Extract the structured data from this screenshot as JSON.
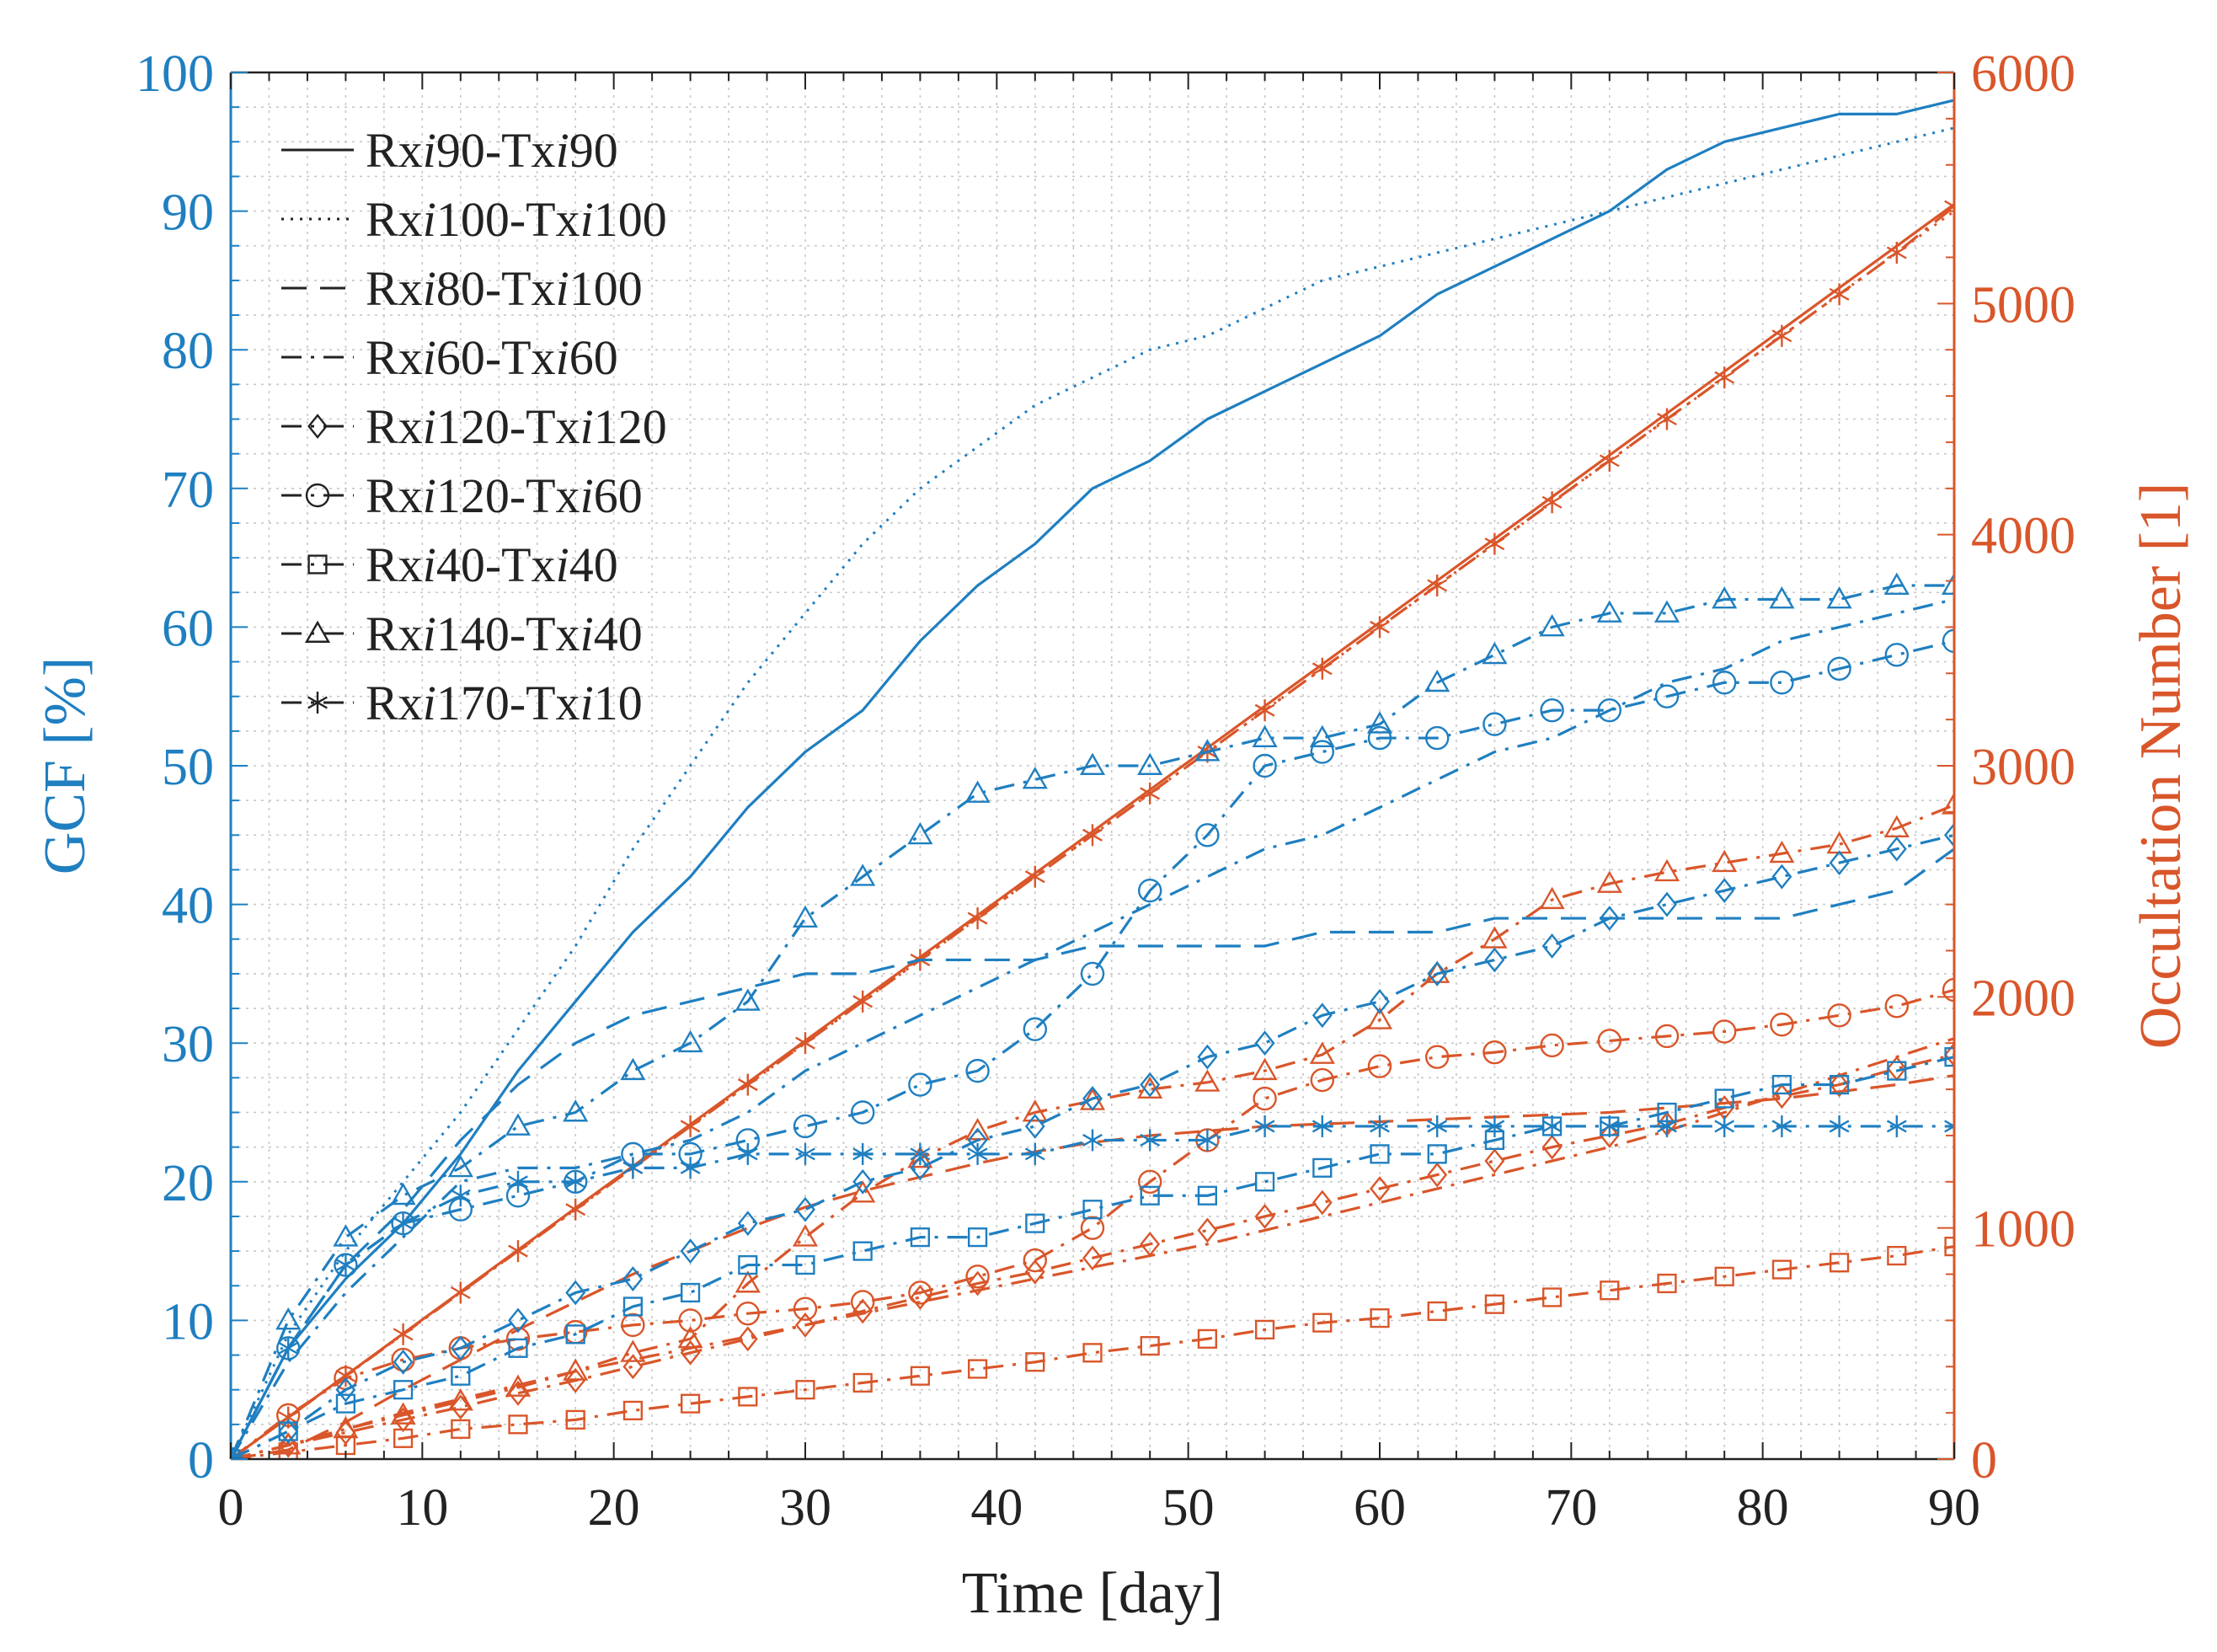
{
  "chart_data": {
    "type": "line",
    "xlabel": "Time [day]",
    "ylabel_left": "GCF [%]",
    "ylabel_right": "Occultation Number [1]",
    "xlim": [
      0,
      90
    ],
    "ylim_left": [
      0,
      100
    ],
    "ylim_right": [
      0,
      6000
    ],
    "x_ticks": [
      0,
      10,
      20,
      30,
      40,
      50,
      60,
      70,
      80,
      90
    ],
    "y_ticks_left": [
      0,
      10,
      20,
      30,
      40,
      50,
      60,
      70,
      80,
      90,
      100
    ],
    "y_ticks_right": [
      0,
      1000,
      2000,
      3000,
      4000,
      5000,
      6000
    ],
    "grid": "minor dotted",
    "legend_position": "top-left",
    "colors": {
      "gcf": "#1f7fc0",
      "occultation": "#d9562a",
      "legend": "#222222"
    },
    "x": [
      0,
      3,
      6,
      9,
      12,
      15,
      18,
      21,
      24,
      27,
      30,
      33,
      36,
      39,
      42,
      45,
      48,
      51,
      54,
      57,
      60,
      63,
      66,
      69,
      72,
      75,
      78,
      81,
      84,
      87,
      90
    ],
    "legend": [
      {
        "label": "Rxi90-Txi90",
        "dash": "solid",
        "marker": "none"
      },
      {
        "label": "Rxi100-Txi100",
        "dash": "dotted",
        "marker": "none"
      },
      {
        "label": "Rxi80-Txi100",
        "dash": "dashed",
        "marker": "none"
      },
      {
        "label": "Rxi60-Txi60",
        "dash": "dashdot",
        "marker": "none"
      },
      {
        "label": "Rxi120-Txi120",
        "dash": "dashdot",
        "marker": "diamond"
      },
      {
        "label": "Rxi120-Txi60",
        "dash": "dashdot",
        "marker": "circle"
      },
      {
        "label": "Rxi40-Txi40",
        "dash": "dashdot",
        "marker": "square"
      },
      {
        "label": "Rxi140-Txi40",
        "dash": "dashdot",
        "marker": "triangle"
      },
      {
        "label": "Rxi170-Txi10",
        "dash": "dashdot",
        "marker": "star"
      }
    ],
    "series_gcf": [
      {
        "name": "Rxi90-Txi90",
        "values": [
          0,
          8,
          13,
          17,
          22,
          28,
          33,
          38,
          42,
          47,
          51,
          54,
          59,
          63,
          66,
          70,
          72,
          75,
          77,
          79,
          81,
          84,
          86,
          88,
          90,
          93,
          95,
          96,
          97,
          97,
          98
        ]
      },
      {
        "name": "Rxi100-Txi100",
        "values": [
          0,
          9,
          15,
          20,
          25,
          31,
          37,
          44,
          50,
          56,
          61,
          66,
          70,
          73,
          76,
          78,
          80,
          81,
          83,
          85,
          86,
          87,
          88,
          89,
          90,
          91,
          92,
          93,
          94,
          95,
          96
        ]
      },
      {
        "name": "Rxi80-Txi100",
        "values": [
          0,
          8,
          14,
          18,
          23,
          27,
          30,
          32,
          33,
          34,
          35,
          35,
          36,
          36,
          36,
          37,
          37,
          37,
          37,
          38,
          38,
          38,
          39,
          39,
          39,
          39,
          39,
          39,
          40,
          41,
          44
        ]
      },
      {
        "name": "Rxi60-Txi60",
        "values": [
          0,
          7,
          12,
          16,
          20,
          21,
          21,
          22,
          23,
          25,
          28,
          30,
          32,
          34,
          36,
          38,
          40,
          42,
          44,
          45,
          47,
          49,
          51,
          52,
          54,
          56,
          57,
          59,
          60,
          61,
          62
        ]
      },
      {
        "name": "Rxi120-Txi120",
        "values": [
          0,
          2,
          5,
          7,
          8,
          10,
          12,
          13,
          15,
          17,
          18,
          20,
          21,
          23,
          24,
          26,
          27,
          29,
          30,
          32,
          33,
          35,
          36,
          37,
          39,
          40,
          41,
          42,
          43,
          44,
          45
        ]
      },
      {
        "name": "Rxi120-Txi60",
        "values": [
          0,
          8,
          14,
          17,
          18,
          19,
          20,
          22,
          22,
          23,
          24,
          25,
          27,
          28,
          31,
          35,
          41,
          45,
          50,
          51,
          52,
          52,
          53,
          54,
          54,
          55,
          56,
          56,
          57,
          58,
          59
        ]
      },
      {
        "name": "Rxi40-Txi40",
        "values": [
          0,
          2,
          4,
          5,
          6,
          8,
          9,
          11,
          12,
          14,
          14,
          15,
          16,
          16,
          17,
          18,
          19,
          19,
          20,
          21,
          22,
          22,
          23,
          24,
          24,
          25,
          26,
          27,
          27,
          28,
          29
        ]
      },
      {
        "name": "Rxi140-Txi40",
        "values": [
          0,
          10,
          16,
          19,
          21,
          24,
          25,
          28,
          30,
          33,
          39,
          42,
          45,
          48,
          49,
          50,
          50,
          51,
          52,
          52,
          53,
          56,
          58,
          60,
          61,
          61,
          62,
          62,
          62,
          63,
          63
        ]
      },
      {
        "name": "Rxi170-Txi10",
        "values": [
          0,
          8,
          14,
          17,
          19,
          20,
          20,
          21,
          21,
          22,
          22,
          22,
          22,
          22,
          22,
          23,
          23,
          23,
          24,
          24,
          24,
          24,
          24,
          24,
          24,
          24,
          24,
          24,
          24,
          24,
          24
        ]
      }
    ],
    "series_occultation": [
      {
        "name": "Rxi90-Txi90",
        "values": [
          0,
          181,
          362,
          543,
          724,
          905,
          1086,
          1267,
          1448,
          1629,
          1810,
          1991,
          2172,
          2353,
          2534,
          2715,
          2896,
          3077,
          3258,
          3439,
          3620,
          3801,
          3982,
          4163,
          4344,
          4525,
          4706,
          4887,
          5068,
          5249,
          5430
        ]
      },
      {
        "name": "Rxi100-Txi100",
        "values": [
          0,
          180,
          360,
          540,
          720,
          900,
          1080,
          1260,
          1440,
          1620,
          1800,
          1980,
          2160,
          2340,
          2520,
          2700,
          2880,
          3060,
          3240,
          3420,
          3600,
          3780,
          3960,
          4140,
          4320,
          4500,
          4680,
          4860,
          5040,
          5220,
          5400
        ]
      },
      {
        "name": "Rxi80-Txi100",
        "values": [
          0,
          40,
          160,
          300,
          430,
          560,
          680,
          800,
          900,
          1000,
          1090,
          1160,
          1220,
          1280,
          1330,
          1370,
          1400,
          1420,
          1440,
          1450,
          1460,
          1470,
          1480,
          1490,
          1500,
          1520,
          1540,
          1560,
          1590,
          1620,
          1660
        ]
      },
      {
        "name": "Rxi60-Txi60",
        "values": [
          0,
          60,
          130,
          200,
          260,
          320,
          380,
          430,
          480,
          530,
          580,
          630,
          680,
          730,
          780,
          830,
          880,
          930,
          990,
          1050,
          1110,
          1170,
          1230,
          1290,
          1350,
          1420,
          1500,
          1580,
          1660,
          1740,
          1820
        ]
      },
      {
        "name": "Rxi120-Txi120",
        "values": [
          0,
          60,
          115,
          170,
          225,
          285,
          340,
          400,
          460,
          520,
          580,
          640,
          700,
          760,
          810,
          870,
          930,
          990,
          1050,
          1110,
          1170,
          1230,
          1290,
          1350,
          1400,
          1450,
          1520,
          1570,
          1620,
          1690,
          1750
        ]
      },
      {
        "name": "Rxi120-Txi60",
        "values": [
          0,
          190,
          350,
          430,
          480,
          520,
          550,
          580,
          600,
          630,
          650,
          680,
          720,
          790,
          860,
          1000,
          1200,
          1380,
          1560,
          1640,
          1700,
          1740,
          1760,
          1790,
          1810,
          1830,
          1850,
          1880,
          1920,
          1960,
          2030
        ]
      },
      {
        "name": "Rxi40-Txi40",
        "values": [
          0,
          30,
          60,
          90,
          130,
          150,
          170,
          210,
          240,
          270,
          300,
          330,
          360,
          390,
          420,
          460,
          490,
          520,
          560,
          590,
          610,
          640,
          670,
          700,
          730,
          760,
          790,
          820,
          850,
          880,
          920
        ]
      },
      {
        "name": "Rxi140-Txi40",
        "values": [
          0,
          60,
          130,
          190,
          250,
          310,
          380,
          460,
          520,
          760,
          960,
          1150,
          1300,
          1420,
          1500,
          1550,
          1600,
          1630,
          1680,
          1750,
          1900,
          2100,
          2250,
          2420,
          2490,
          2540,
          2580,
          2620,
          2660,
          2730,
          2830
        ]
      },
      {
        "name": "Rxi170-Txi10",
        "values": [
          0,
          180,
          360,
          540,
          720,
          900,
          1080,
          1260,
          1440,
          1620,
          1800,
          1980,
          2160,
          2340,
          2520,
          2700,
          2880,
          3060,
          3240,
          3420,
          3600,
          3780,
          3960,
          4140,
          4320,
          4500,
          4680,
          4860,
          5040,
          5220,
          5420
        ]
      }
    ]
  }
}
